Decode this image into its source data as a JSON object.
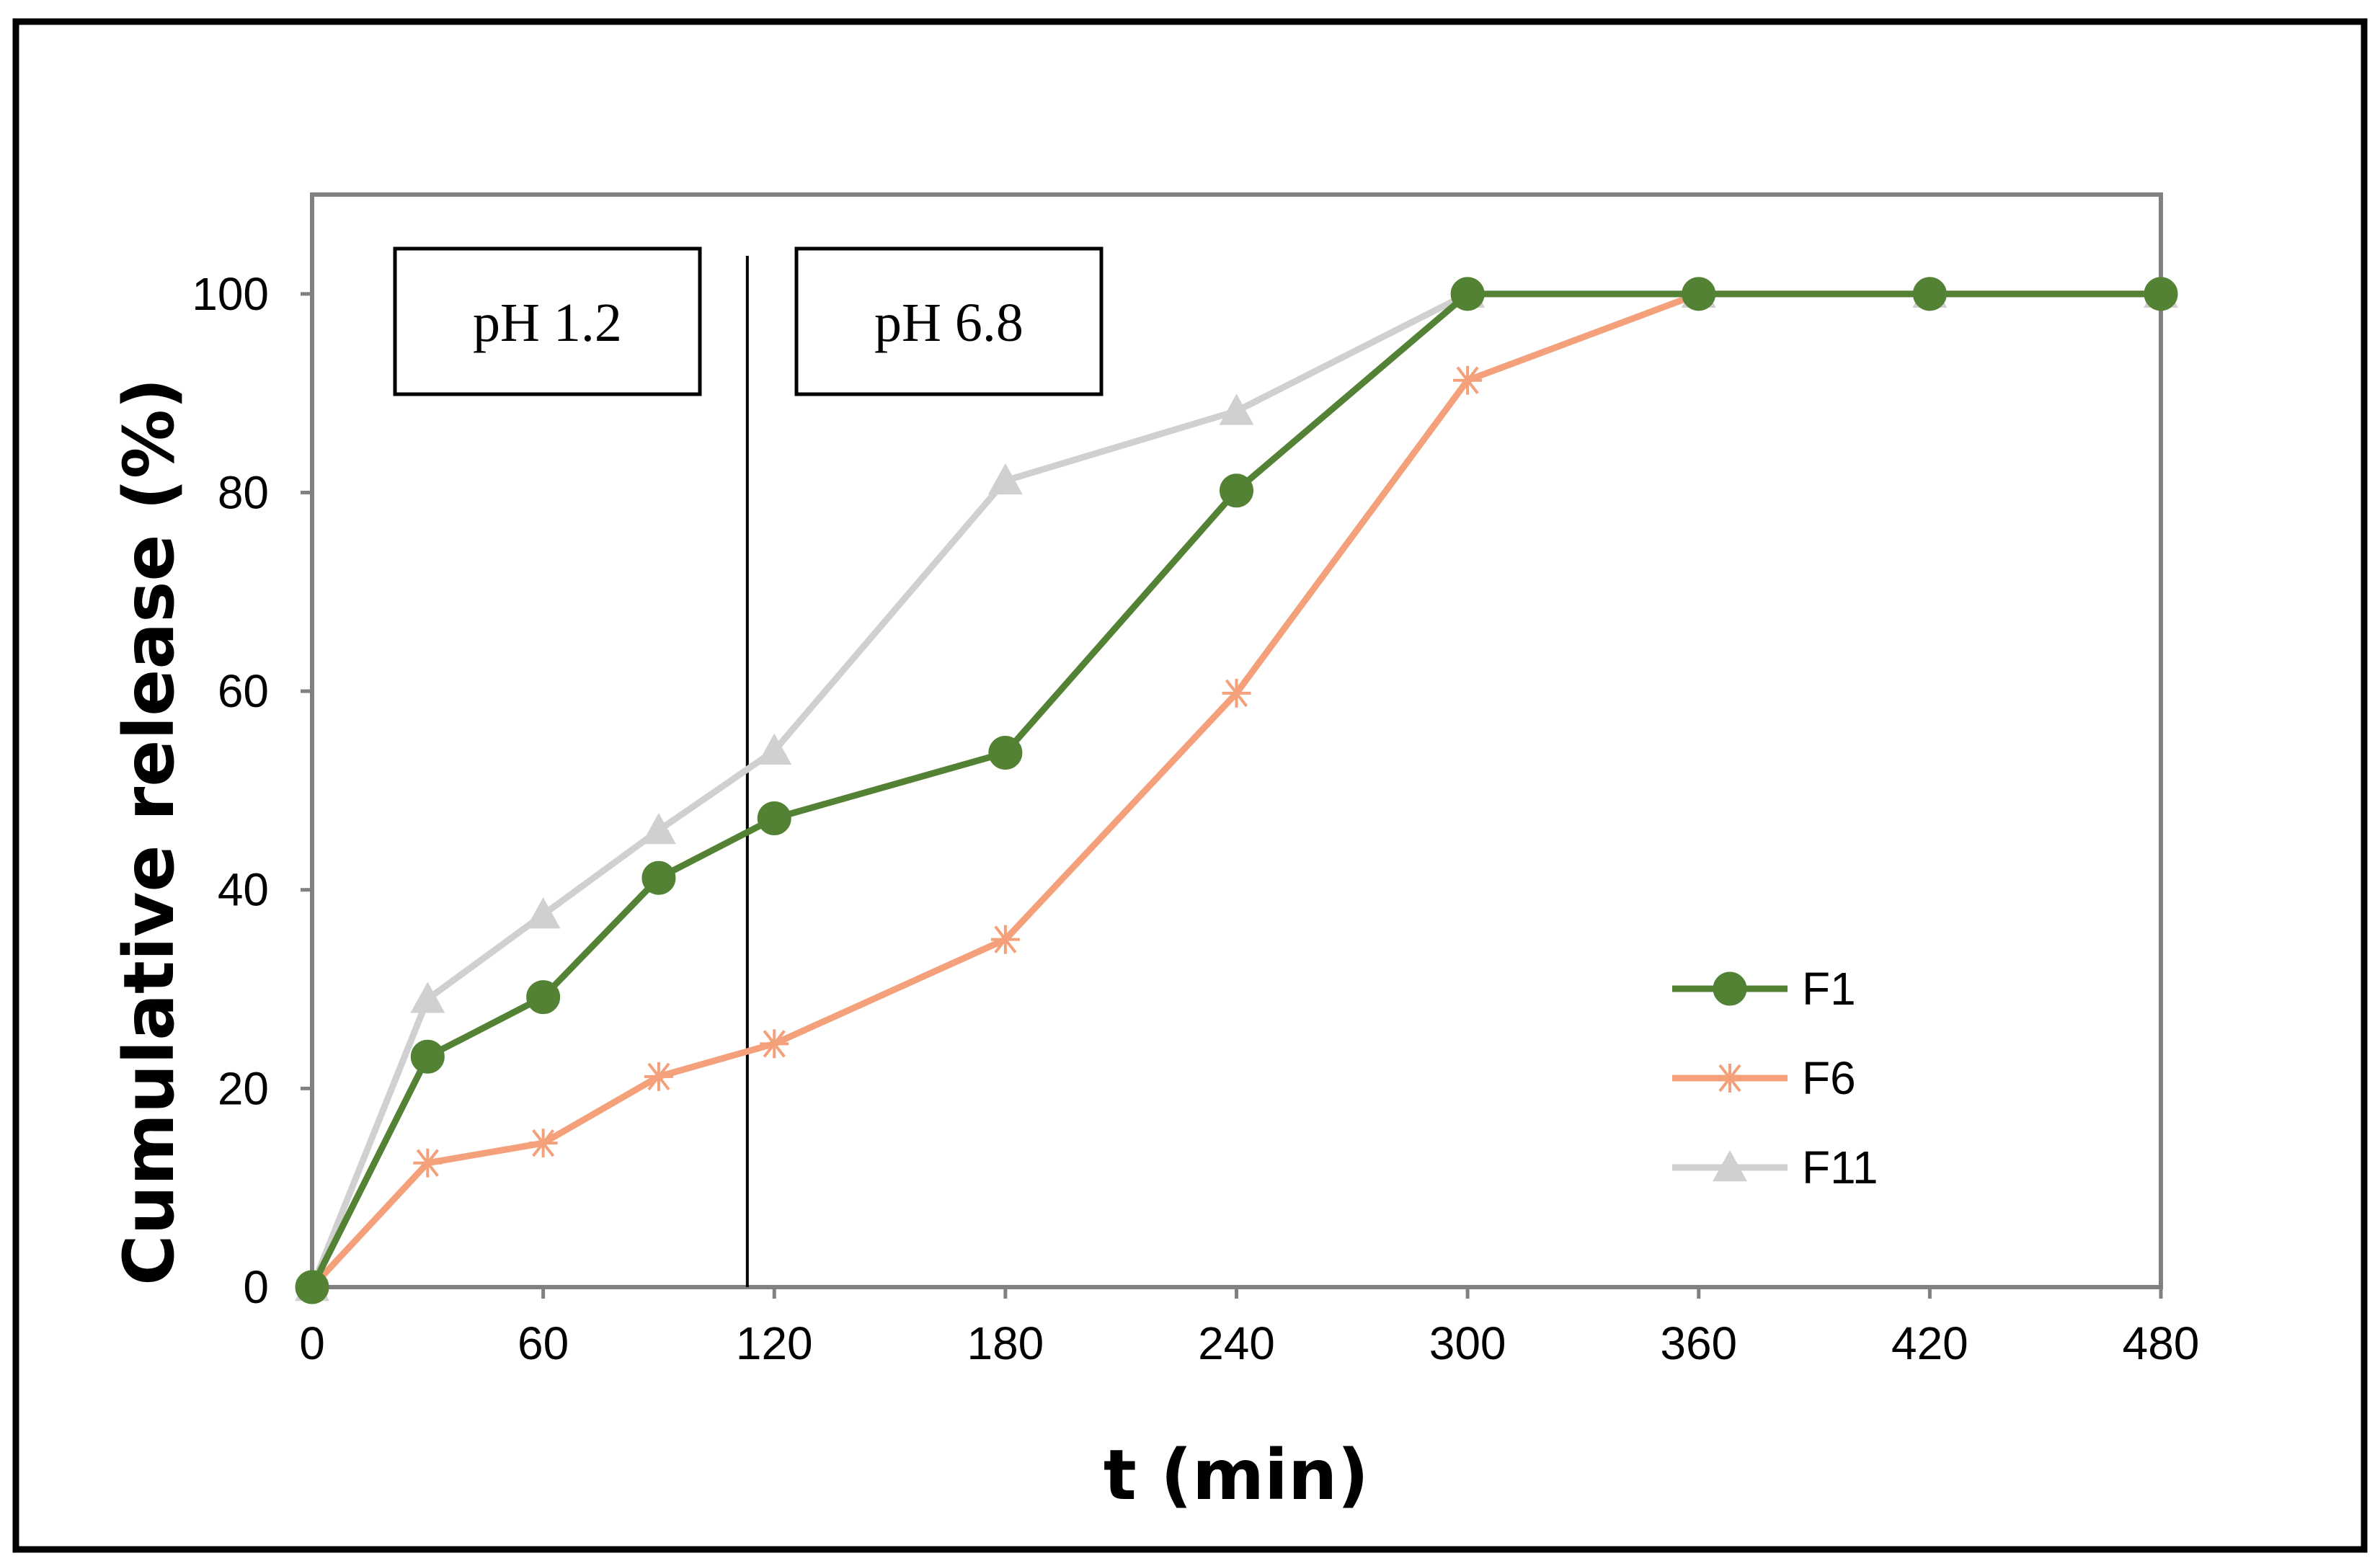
{
  "chart_data": {
    "type": "line",
    "title": "",
    "xlabel": "t (min)",
    "ylabel": "Cumulative release (%)",
    "xlim": [
      0,
      480
    ],
    "ylim": [
      0,
      110
    ],
    "xticks": [
      0,
      60,
      120,
      180,
      240,
      300,
      360,
      420,
      480
    ],
    "yticks": [
      0,
      20,
      40,
      60,
      80,
      100
    ],
    "grid": false,
    "legend_position": "bottom-right",
    "phase_divider_x": 113,
    "phases": [
      {
        "label": "pH 1.2"
      },
      {
        "label": "pH 6.8"
      }
    ],
    "series": [
      {
        "name": "F1",
        "color": "#548235",
        "marker": "circle",
        "x": [
          0,
          30,
          60,
          90,
          120,
          180,
          240,
          300,
          360,
          420,
          480
        ],
        "values": [
          0,
          23.2,
          29.2,
          41.2,
          47.2,
          53.8,
          80.2,
          100,
          100,
          100,
          100
        ]
      },
      {
        "name": "F6",
        "color": "#F4A07A",
        "marker": "star",
        "x": [
          0,
          30,
          60,
          90,
          120,
          180,
          240,
          300,
          360,
          420,
          480
        ],
        "values": [
          0,
          12.5,
          14.5,
          21.2,
          24.5,
          35.0,
          59.8,
          91.3,
          100,
          100,
          100
        ]
      },
      {
        "name": "F11",
        "color": "#D0D0D0",
        "marker": "triangle",
        "x": [
          0,
          30,
          60,
          90,
          120,
          180,
          240,
          300,
          360,
          420,
          480
        ],
        "values": [
          0,
          29.0,
          37.5,
          46.0,
          54.0,
          81.2,
          88.2,
          100,
          100,
          100,
          100
        ]
      }
    ]
  }
}
